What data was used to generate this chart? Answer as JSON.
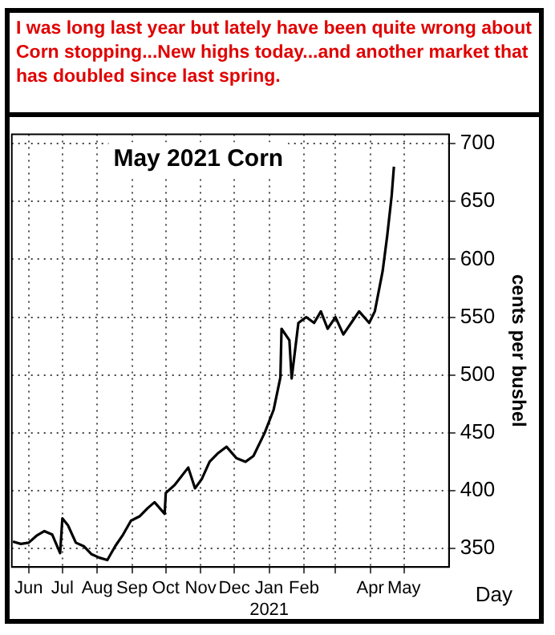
{
  "chart_data": {
    "type": "line",
    "title": "May 2021 Corn",
    "ylabel": "cents per bushel",
    "xlabel": "Day",
    "annotations": [
      "I was long last year but lately have been quite wrong about Corn stopping...New highs today...and another market that has doubled since last spring."
    ],
    "x": [
      "2020-05-18",
      "2020-05-25",
      "2020-06-01",
      "2020-06-08",
      "2020-06-15",
      "2020-06-22",
      "2020-06-29",
      "2020-07-01",
      "2020-07-06",
      "2020-07-13",
      "2020-07-20",
      "2020-07-27",
      "2020-08-03",
      "2020-08-10",
      "2020-08-17",
      "2020-08-24",
      "2020-08-31",
      "2020-09-08",
      "2020-09-15",
      "2020-09-21",
      "2020-09-30",
      "2020-10-01",
      "2020-10-09",
      "2020-10-21",
      "2020-10-27",
      "2020-11-02",
      "2020-11-09",
      "2020-11-16",
      "2020-11-24",
      "2020-12-03",
      "2020-12-11",
      "2020-12-18",
      "2020-12-28",
      "2021-01-05",
      "2021-01-11",
      "2021-01-12",
      "2021-01-19",
      "2021-01-21",
      "2021-01-27",
      "2021-02-03",
      "2021-02-10",
      "2021-02-16",
      "2021-02-22",
      "2021-03-01",
      "2021-03-08",
      "2021-03-15",
      "2021-03-22",
      "2021-03-31",
      "2021-04-05",
      "2021-04-08",
      "2021-04-12",
      "2021-04-16",
      "2021-04-20",
      "2021-04-22"
    ],
    "series": [
      {
        "color": "#000000",
        "values": [
          356,
          354,
          355,
          361,
          365,
          362,
          346,
          376,
          370,
          355,
          352,
          345,
          342,
          340,
          352,
          362,
          374,
          378,
          385,
          390,
          380,
          398,
          405,
          420,
          402,
          410,
          425,
          432,
          438,
          428,
          425,
          430,
          450,
          470,
          498,
          540,
          530,
          497,
          545,
          550,
          545,
          555,
          540,
          550,
          535,
          545,
          555,
          545,
          555,
          570,
          590,
          620,
          655,
          680
        ]
      }
    ],
    "xlim": [
      "2020-05-17",
      "2021-06-10"
    ],
    "xticks": [
      {
        "value": "2020-06-01",
        "label": "Jun"
      },
      {
        "value": "2020-07-01",
        "label": "Jul"
      },
      {
        "value": "2020-08-01",
        "label": "Aug"
      },
      {
        "value": "2020-09-01",
        "label": "Sep"
      },
      {
        "value": "2020-10-01",
        "label": "Oct"
      },
      {
        "value": "2020-11-01",
        "label": "Nov"
      },
      {
        "value": "2020-12-01",
        "label": "Dec"
      },
      {
        "value": "2021-01-01",
        "label": "Jan\n2021"
      },
      {
        "value": "2021-02-01",
        "label": "Feb"
      },
      {
        "value": "2021-03-01",
        "label": null
      },
      {
        "value": "2021-04-01",
        "label": "Apr"
      },
      {
        "value": "2021-05-01",
        "label": "May"
      }
    ],
    "ylim": [
      334,
      708
    ],
    "yticks": [
      350,
      400,
      450,
      500,
      550,
      600,
      650,
      700
    ],
    "grid": true,
    "legend": false,
    "marker": "none",
    "line_style": "solid"
  }
}
